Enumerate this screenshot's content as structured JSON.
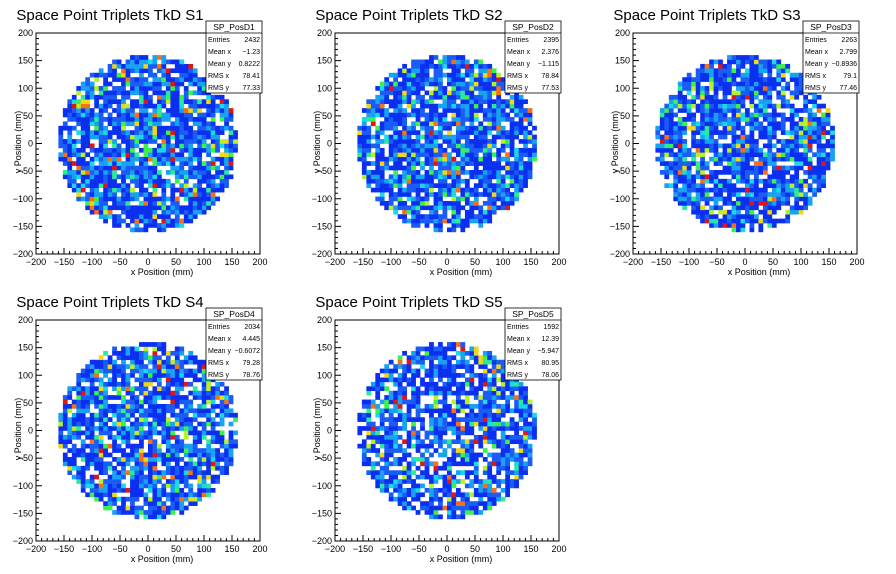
{
  "chart_data": [
    {
      "type": "heatmap",
      "title": "Space Point Triplets TkD S1",
      "xlabel": "x Position (mm)",
      "ylabel": "y Position (mm)",
      "xlim": [
        -200,
        200
      ],
      "ylim": [
        -200,
        200
      ],
      "x_ticks": [
        "−200",
        "−150",
        "−100",
        "−50",
        "0",
        "50",
        "100",
        "150",
        "200"
      ],
      "y_ticks": [
        "−200",
        "−150",
        "−100",
        "−50",
        "0",
        "50",
        "100",
        "150",
        "200"
      ],
      "stats": {
        "name": "SP_PosD1",
        "rows": [
          {
            "label": "Entries",
            "value": "2432"
          },
          {
            "label": "Mean x",
            "value": "−1.23"
          },
          {
            "label": "Mean y",
            "value": "0.8222"
          },
          {
            "label": "RMS x",
            "value": "78.41"
          },
          {
            "label": "RMS y",
            "value": "77.33"
          }
        ]
      },
      "entries": 2432,
      "mean_x": -1.23,
      "mean_y": 0.8222,
      "rms_x": 78.41,
      "rms_y": 77.33,
      "radius_mm": 160,
      "bin_mm": 8,
      "seed": 11
    },
    {
      "type": "heatmap",
      "title": "Space Point Triplets TkD S2",
      "xlabel": "x Position (mm)",
      "ylabel": "y Position (mm)",
      "xlim": [
        -200,
        200
      ],
      "ylim": [
        -200,
        200
      ],
      "x_ticks": [
        "−200",
        "−150",
        "−100",
        "−50",
        "0",
        "50",
        "100",
        "150",
        "200"
      ],
      "y_ticks": [
        "−200",
        "−150",
        "−100",
        "−50",
        "0",
        "50",
        "100",
        "150",
        "200"
      ],
      "stats": {
        "name": "SP_PosD2",
        "rows": [
          {
            "label": "Entries",
            "value": "2395"
          },
          {
            "label": "Mean x",
            "value": "2.376"
          },
          {
            "label": "Mean y",
            "value": "−1.115"
          },
          {
            "label": "RMS x",
            "value": "78.84"
          },
          {
            "label": "RMS y",
            "value": "77.53"
          }
        ]
      },
      "entries": 2395,
      "mean_x": 2.376,
      "mean_y": -1.115,
      "rms_x": 78.84,
      "rms_y": 77.53,
      "radius_mm": 160,
      "bin_mm": 8,
      "seed": 23
    },
    {
      "type": "heatmap",
      "title": "Space Point Triplets TkD S3",
      "xlabel": "x Position (mm)",
      "ylabel": "y Position (mm)",
      "xlim": [
        -200,
        200
      ],
      "ylim": [
        -200,
        200
      ],
      "x_ticks": [
        "−200",
        "−150",
        "−100",
        "−50",
        "0",
        "50",
        "100",
        "150",
        "200"
      ],
      "y_ticks": [
        "−200",
        "−150",
        "−100",
        "−50",
        "0",
        "50",
        "100",
        "150",
        "200"
      ],
      "stats": {
        "name": "SP_PosD3",
        "rows": [
          {
            "label": "Entries",
            "value": "2263"
          },
          {
            "label": "Mean x",
            "value": "2.799"
          },
          {
            "label": "Mean y",
            "value": "−0.8936"
          },
          {
            "label": "RMS x",
            "value": "79.1"
          },
          {
            "label": "RMS y",
            "value": "77.46"
          }
        ]
      },
      "entries": 2263,
      "mean_x": 2.799,
      "mean_y": -0.8936,
      "rms_x": 79.1,
      "rms_y": 77.46,
      "radius_mm": 160,
      "bin_mm": 8,
      "seed": 37
    },
    {
      "type": "heatmap",
      "title": "Space Point Triplets TkD S4",
      "xlabel": "x Position (mm)",
      "ylabel": "y Position (mm)",
      "xlim": [
        -200,
        200
      ],
      "ylim": [
        -200,
        200
      ],
      "x_ticks": [
        "−200",
        "−150",
        "−100",
        "−50",
        "0",
        "50",
        "100",
        "150",
        "200"
      ],
      "y_ticks": [
        "−200",
        "−150",
        "−100",
        "−50",
        "0",
        "50",
        "100",
        "150",
        "200"
      ],
      "stats": {
        "name": "SP_PosD4",
        "rows": [
          {
            "label": "Entries",
            "value": "2034"
          },
          {
            "label": "Mean x",
            "value": "4.445"
          },
          {
            "label": "Mean y",
            "value": "−0.6072"
          },
          {
            "label": "RMS x",
            "value": "79.28"
          },
          {
            "label": "RMS y",
            "value": "78.76"
          }
        ]
      },
      "entries": 2034,
      "mean_x": 4.445,
      "mean_y": -0.6072,
      "rms_x": 79.28,
      "rms_y": 78.76,
      "radius_mm": 160,
      "bin_mm": 8,
      "seed": 51
    },
    {
      "type": "heatmap",
      "title": "Space Point Triplets TkD S5",
      "xlabel": "x Position (mm)",
      "ylabel": "y Position (mm)",
      "xlim": [
        -200,
        200
      ],
      "ylim": [
        -200,
        200
      ],
      "x_ticks": [
        "−200",
        "−150",
        "−100",
        "−50",
        "0",
        "50",
        "100",
        "150",
        "200"
      ],
      "y_ticks": [
        "−200",
        "−150",
        "−100",
        "−50",
        "0",
        "50",
        "100",
        "150",
        "200"
      ],
      "stats": {
        "name": "SP_PosD5",
        "rows": [
          {
            "label": "Entries",
            "value": "1592"
          },
          {
            "label": "Mean x",
            "value": "12.39"
          },
          {
            "label": "Mean y",
            "value": "−5.947"
          },
          {
            "label": "RMS x",
            "value": "80.95"
          },
          {
            "label": "RMS y",
            "value": "78.06"
          }
        ]
      },
      "entries": 1592,
      "mean_x": 12.39,
      "mean_y": -5.947,
      "rms_x": 80.95,
      "rms_y": 78.06,
      "radius_mm": 160,
      "bin_mm": 8,
      "seed": 67
    }
  ],
  "colors": {
    "palette": [
      "#0a2ff0",
      "#1a5cf6",
      "#17a3f2",
      "#19d9e8",
      "#2bea9a",
      "#3ef04a",
      "#b8f02a",
      "#f0d817",
      "#f5701a",
      "#e01616"
    ],
    "frame": "#000000",
    "stats_border": "#000000"
  }
}
